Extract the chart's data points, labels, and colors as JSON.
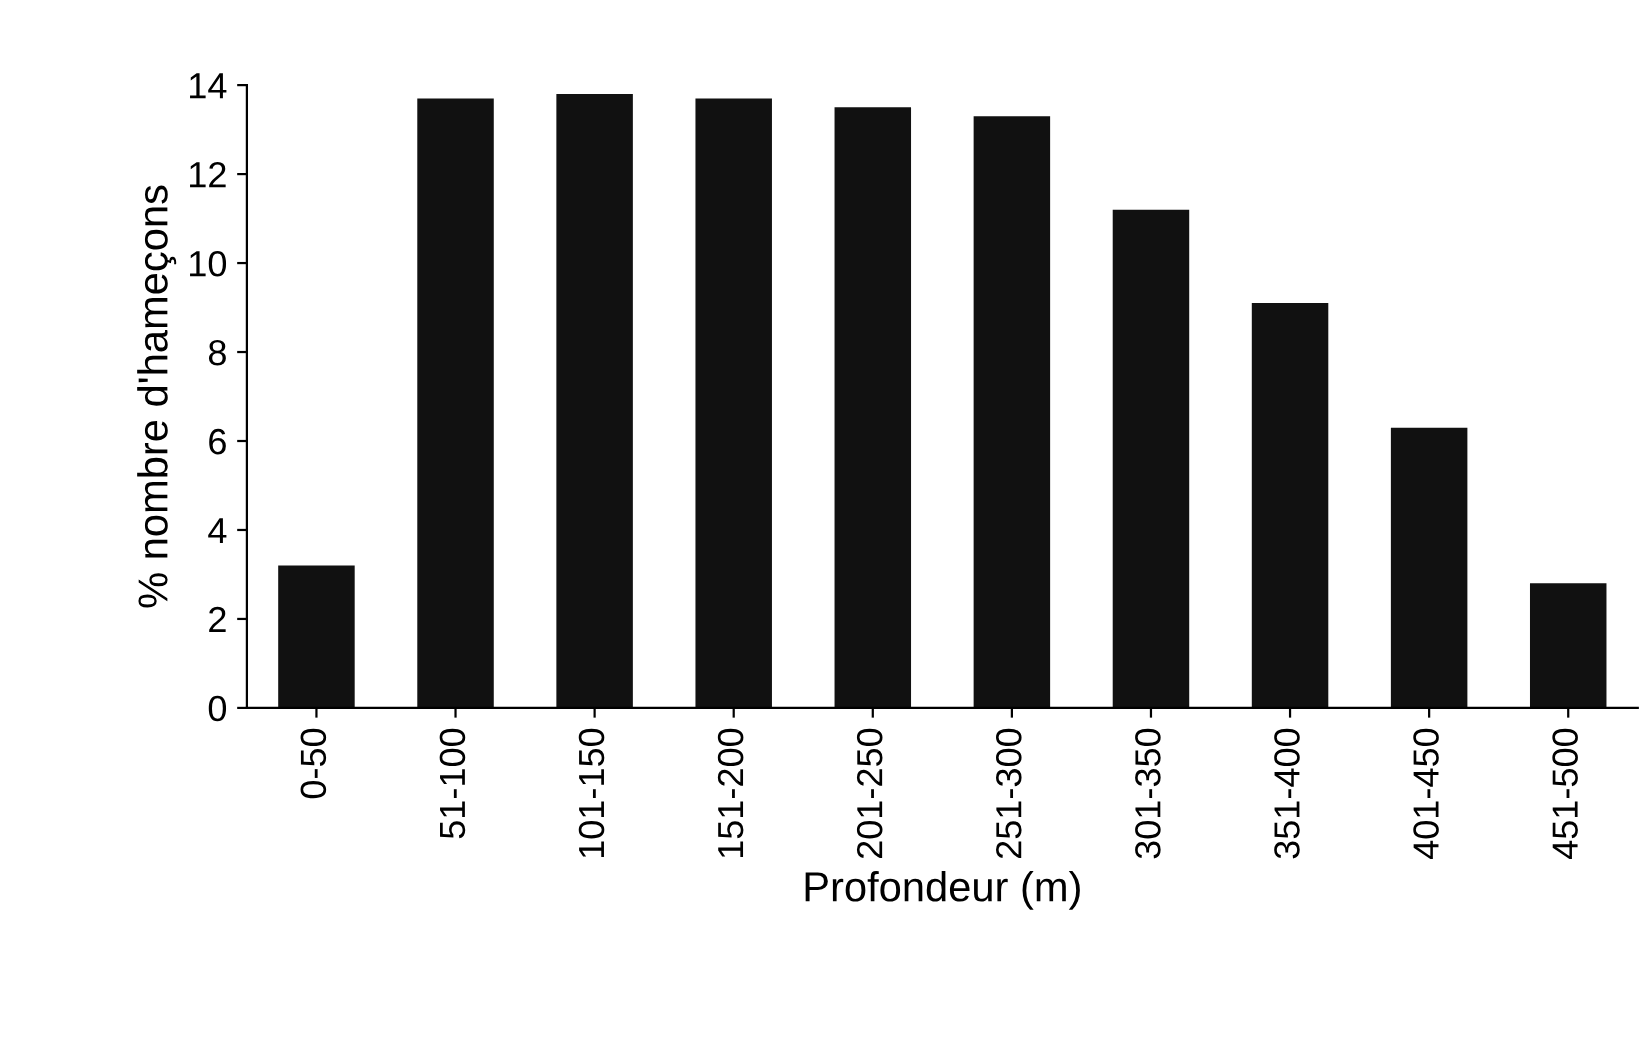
{
  "chart_data": {
    "type": "bar",
    "xlabel": "Profondeur (m)",
    "ylabel": "% nombre d'hameçons",
    "categories": [
      "0-50",
      "51-100",
      "101-150",
      "151-200",
      "201-250",
      "251-300",
      "301-350",
      "351-400",
      "401-450",
      "451-500"
    ],
    "values": [
      3.2,
      13.7,
      13.8,
      13.7,
      13.5,
      13.3,
      11.2,
      9.1,
      6.3,
      2.8
    ],
    "color": "#111111",
    "ylim": [
      0,
      14
    ],
    "yticks": [
      0,
      2,
      4,
      6,
      8,
      10,
      12,
      14
    ],
    "grid": false,
    "legend": false
  }
}
